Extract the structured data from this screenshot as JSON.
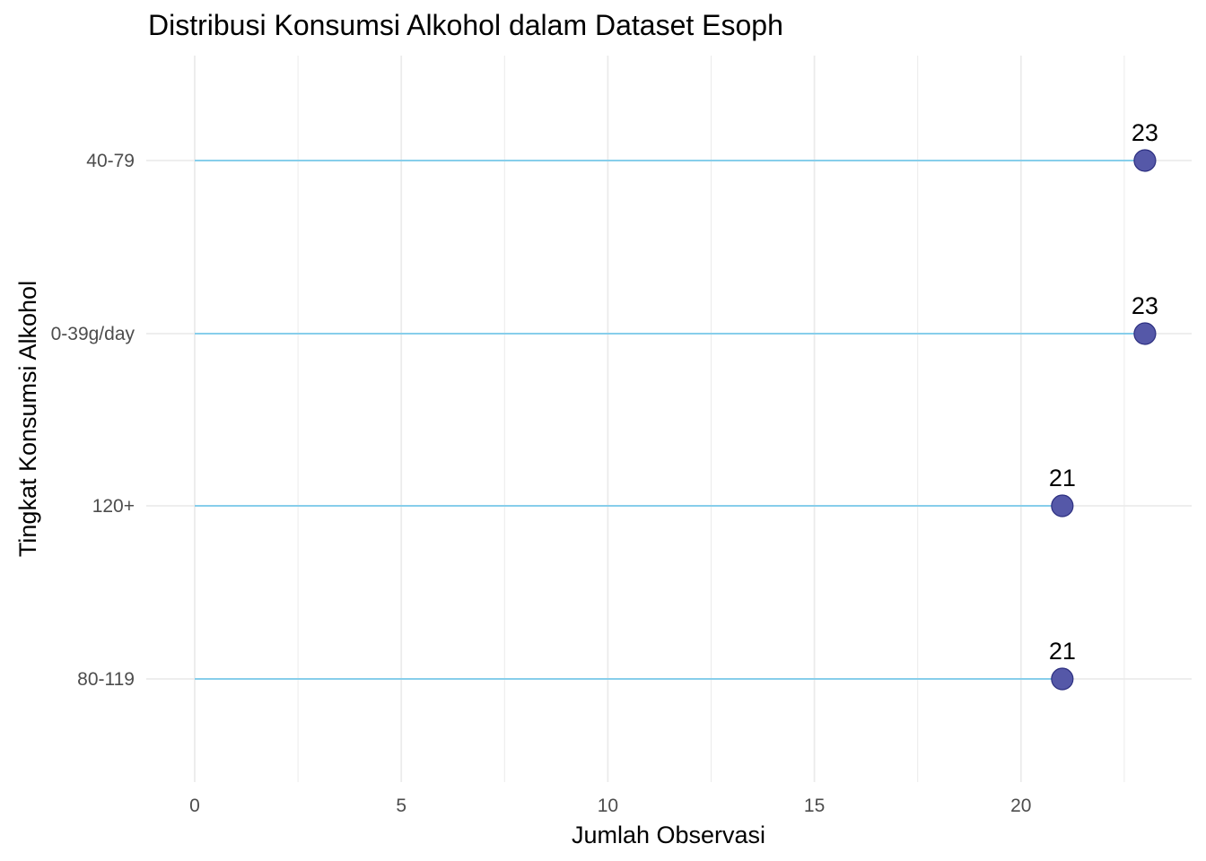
{
  "chart_data": {
    "type": "lollipop",
    "title": "Distribusi Konsumsi Alkohol dalam Dataset Esoph",
    "xlabel": "Jumlah Observasi",
    "ylabel": "Tingkat Konsumsi Alkohol",
    "categories": [
      "40-79",
      "0-39g/day",
      "120+",
      "80-119"
    ],
    "values": [
      23,
      23,
      21,
      21
    ],
    "data_labels": [
      "23",
      "23",
      "21",
      "21"
    ],
    "xlim": [
      0,
      23
    ],
    "x_ticks": [
      0,
      5,
      10,
      15,
      20
    ],
    "x_tick_labels": [
      "0",
      "5",
      "10",
      "15",
      "20"
    ],
    "grid": true,
    "legend": "none",
    "colors": {
      "stem": "#87ceeb",
      "point_fill": "#5558a8",
      "point_stroke": "#2c2f80",
      "grid": "#ebebeb",
      "axis_text": "#4d4d4d",
      "label_text": "#000000"
    }
  }
}
